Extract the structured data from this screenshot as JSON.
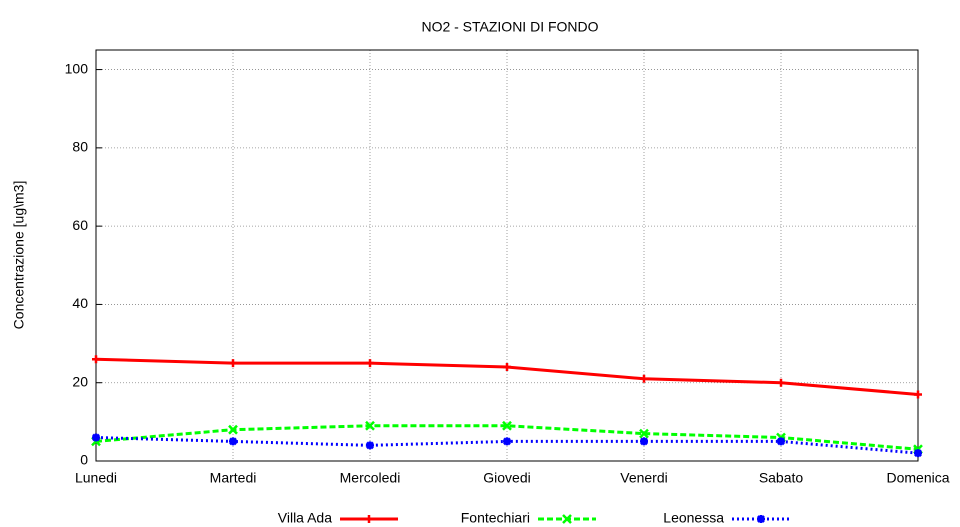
{
  "chart_data": {
    "type": "line",
    "title": "NO2 - STAZIONI DI FONDO",
    "y_label": "Concentrazione [ug\\m3]",
    "categories": [
      "Lunedi",
      "Martedi",
      "Mercoledi",
      "Giovedi",
      "Venerdi",
      "Sabato",
      "Domenica"
    ],
    "series": [
      {
        "name": "Villa Ada",
        "color": "#ff0000",
        "values": [
          26,
          25,
          25,
          24,
          21,
          20,
          17
        ]
      },
      {
        "name": "Fontechiari",
        "color": "#00ff00",
        "values": [
          5,
          8,
          9,
          9,
          7,
          6,
          3
        ]
      },
      {
        "name": "Leonessa",
        "color": "#0000ff",
        "values": [
          6,
          5,
          4,
          5,
          5,
          5,
          2
        ]
      }
    ],
    "ylim": [
      0,
      105
    ],
    "yticks": [
      0,
      20,
      40,
      60,
      80,
      100
    ],
    "grid": true
  }
}
